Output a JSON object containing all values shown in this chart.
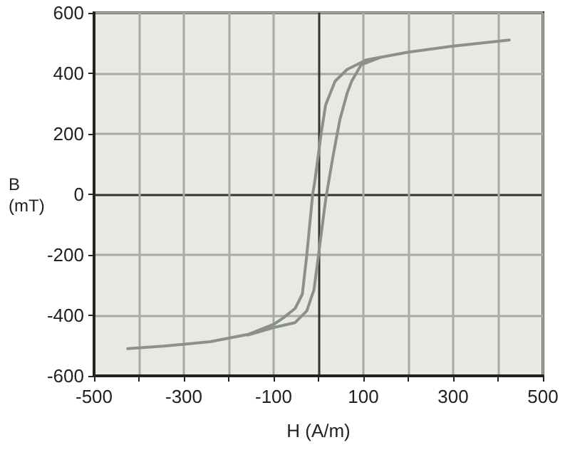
{
  "chart_data": {
    "type": "line",
    "xlabel": "H (A/m)",
    "ylabel": "B (mT)",
    "xlim": [
      -500,
      500
    ],
    "xticks": [
      -500,
      {
        "value": -400,
        "label": null
      },
      -300,
      {
        "value": -200,
        "label": null
      },
      -100,
      {
        "value": 0,
        "label": null
      },
      100,
      {
        "value": 200,
        "label": null
      },
      300,
      {
        "value": 400,
        "label": null
      },
      500
    ],
    "ylim": [
      -600,
      600
    ],
    "yticks": [
      -600,
      -400,
      -200,
      0,
      200,
      400,
      600
    ],
    "grid": true,
    "marker": "none",
    "line_style": "solid",
    "series": [
      {
        "color": "#8a918a",
        "x": [
          425,
          300,
          200,
          106,
          64,
          37,
          16,
          6,
          -8,
          -13,
          -26,
          -36,
          -52,
          -78,
          -99,
          -157,
          -241,
          -346,
          -425
        ],
        "values": [
          510,
          490,
          470,
          444,
          413,
          374,
          296,
          202,
          45,
          0,
          -200,
          -330,
          -377,
          -408,
          -429,
          -463,
          -487,
          -502,
          -510
        ]
      },
      {
        "color": "#8a918a",
        "x": [
          -157,
          -99,
          -52,
          -26,
          -10,
          0,
          16,
          32,
          48,
          64,
          74,
          95,
          137
        ],
        "values": [
          -465,
          -440,
          -424,
          -385,
          -315,
          -202,
          -17,
          123,
          249,
          335,
          374,
          428,
          452
        ]
      }
    ]
  }
}
